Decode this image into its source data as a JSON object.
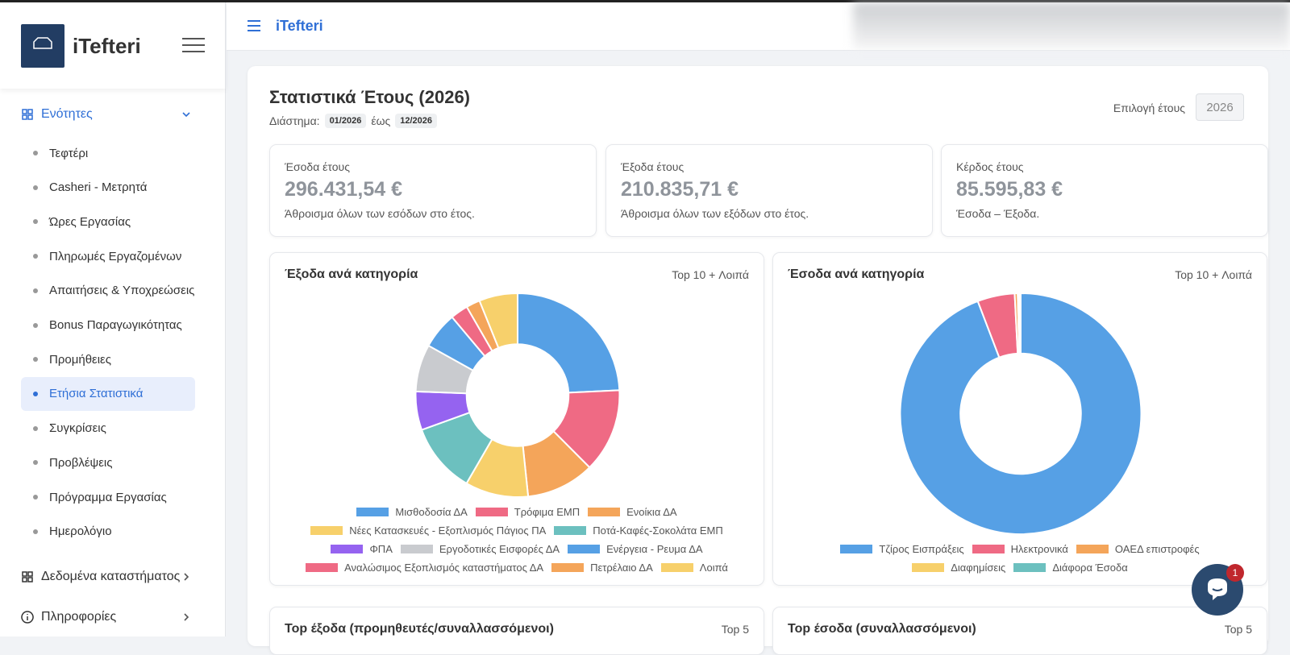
{
  "sidebar": {
    "brand": "iTefteri",
    "sections": [
      {
        "label": "Ενότητες",
        "items": [
          "Τεφτέρι",
          "Casheri - Μετρητά",
          "Ώρες Εργασίας",
          "Πληρωμές Εργαζομένων",
          "Απαιτήσεις & Υποχρεώσεις",
          "Bonus Παραγωγικότητας",
          "Προμήθειες",
          "Ετήσια Στατιστικά",
          "Συγκρίσεις",
          "Προβλέψεις",
          "Πρόγραμμα Εργασίας",
          "Ημερολόγιο"
        ],
        "active": 7
      },
      {
        "label": "Δεδομένα καταστήματος"
      },
      {
        "label": "Πληροφορίες"
      }
    ]
  },
  "topbar": {
    "title": "iTefteri"
  },
  "page": {
    "title": "Στατιστικά Έτους (2026)",
    "period_label": "Διάστημα:",
    "from": "01/2026",
    "to_word": "έως",
    "to": "12/2026",
    "year_label": "Επιλογή έτους",
    "year": "2026"
  },
  "kpis": [
    {
      "label": "Έσοδα έτους",
      "value": "296.431,54 €",
      "note": "Άθροισμα όλων των εσόδων στο έτος."
    },
    {
      "label": "Έξοδα έτους",
      "value": "210.835,71 €",
      "note": "Άθροισμα όλων των εξόδων στο έτος."
    },
    {
      "label": "Κέρδος έτους",
      "value": "85.595,83 €",
      "note": "Έσοδα – Έξοδα."
    }
  ],
  "chart_data": [
    {
      "type": "doughnut",
      "title": "Έξοδα ανά κατηγορία",
      "subtitle": "Top 10 + Λοιπά",
      "categories": [
        "Μισθοδοσία ΔΑ",
        "Τρόφιμα ΕΜΠ",
        "Ενοίκια ΔΑ",
        "Νέες Κατασκευές - Εξοπλισμός Πάγιος ΠΑ",
        "Ποτά-Καφές-Σοκολάτα ΕΜΠ",
        "ΦΠΑ",
        "Εργοδοτικές Εισφορές ΔΑ",
        "Ενέργεια - Ρευμα ΔΑ",
        "Αναλώσιμος Εξοπλισμός καταστήματος ΔΑ",
        "Πετρέλαιο ΔΑ",
        "Λοιπά"
      ],
      "values": [
        24.2,
        13.3,
        10.8,
        10,
        11.1,
        6.1,
        7.5,
        5.8,
        2.8,
        2.2,
        6.1
      ],
      "colors": [
        "#56a0e5",
        "#ef6a84",
        "#f4a55a",
        "#f7d06b",
        "#6cc0bf",
        "#9563f0",
        "#c9cbcf",
        "#56a0e5",
        "#ef6a84",
        "#f4a55a",
        "#f7d06b"
      ]
    },
    {
      "type": "doughnut",
      "title": "Έσοδα ανά κατηγορία",
      "subtitle": "Top 10 + Λοιπά",
      "categories": [
        "Τζίρος Εισπράξεις",
        "Ηλεκτρονικά",
        "ΟΑΕΔ επιστροφές",
        "Διαφημίσεις",
        "Διάφορα Έσοδα"
      ],
      "values": [
        94.2,
        5,
        0.4,
        0.2,
        0.2
      ],
      "colors": [
        "#56a0e5",
        "#ef6a84",
        "#f4a55a",
        "#f7d06b",
        "#6cc0bf"
      ]
    }
  ],
  "bottom_cards": [
    {
      "title": "Top έξοδα (προμηθευτές/συναλλασσόμενοι)",
      "note": "Top 5"
    },
    {
      "title": "Top έσοδα (συναλλασσόμενοι)",
      "note": "Top 5"
    }
  ],
  "chat": {
    "unread": "1"
  }
}
